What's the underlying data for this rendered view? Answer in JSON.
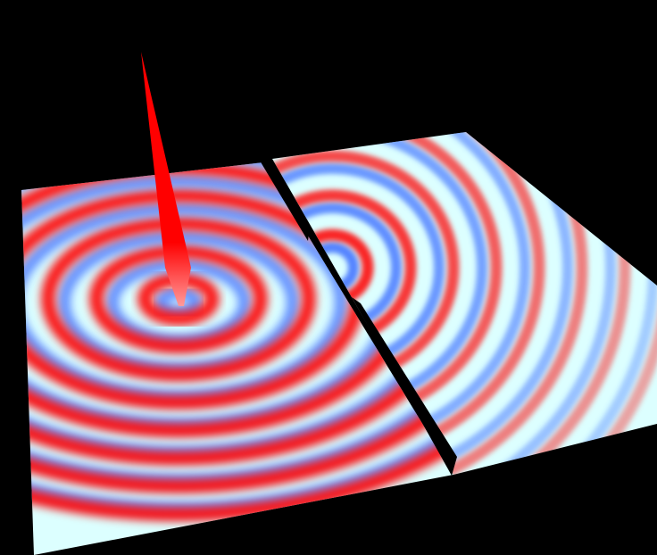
{
  "scene": {
    "background_color": "#000000",
    "surface_base_color": "#dcffff",
    "crest_color": "#ff0000",
    "trough_color": "#3c6eff",
    "barrier_color": "#000000"
  },
  "simulation": {
    "source_count": 1,
    "slit_count": 1,
    "left_wavefronts": 8,
    "right_wavefronts": 8
  }
}
